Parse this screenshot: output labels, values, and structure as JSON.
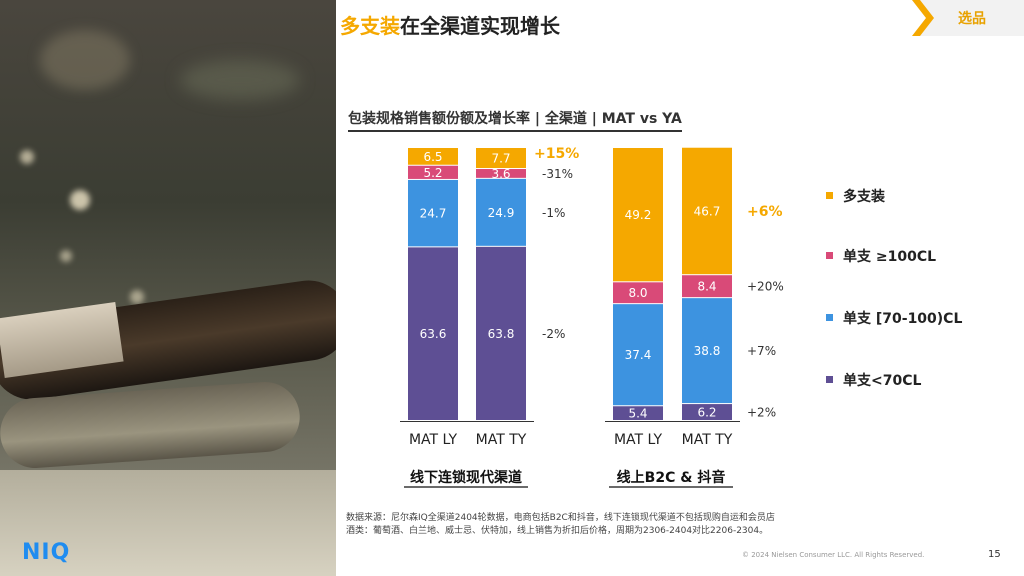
{
  "title": {
    "highlight": "多支装",
    "rest": "在全渠道实现增长"
  },
  "tag": "选品",
  "brand": {
    "logo": "NIQ",
    "colors": {
      "orange": "#f5a800",
      "pink": "#d94a78",
      "blue": "#3d93e0",
      "purple": "#5e4f94",
      "accent": "#1f8cf0"
    }
  },
  "chart_data": {
    "type": "bar",
    "stacked": true,
    "normalized_to_100": true,
    "title": "包装规格销售额份额及增长率 | 全渠道 | MAT vs YA",
    "legend_position": "right",
    "series": [
      {
        "name": "多支装",
        "color": "#f5a800"
      },
      {
        "name": "单支 ≥100CL",
        "color": "#d94a78"
      },
      {
        "name": "单支 [70-100)CL",
        "color": "#3d93e0"
      },
      {
        "name": "单支<70CL",
        "color": "#5e4f94"
      }
    ],
    "groups": [
      {
        "name": "线下连锁现代渠道",
        "categories": [
          "MAT LY",
          "MAT TY"
        ],
        "values": {
          "多支装": [
            6.5,
            7.7
          ],
          "单支 ≥100CL": [
            5.2,
            3.6
          ],
          "单支 [70-100)CL": [
            24.7,
            24.9
          ],
          "单支<70CL": [
            63.6,
            63.8
          ]
        },
        "growth": {
          "多支装": "+15%",
          "单支 ≥100CL": "-31%",
          "单支 [70-100)CL": "-1%",
          "单支<70CL": "-2%"
        }
      },
      {
        "name": "线上B2C & 抖音",
        "categories": [
          "MAT LY",
          "MAT TY"
        ],
        "values": {
          "多支装": [
            49.2,
            46.7
          ],
          "单支 ≥100CL": [
            8.0,
            8.4
          ],
          "单支 [70-100)CL": [
            37.4,
            38.8
          ],
          "单支<70CL": [
            5.4,
            6.2
          ]
        },
        "growth": {
          "多支装": "+6%",
          "单支 ≥100CL": "+20%",
          "单支 [70-100)CL": "+7%",
          "单支<70CL": "+2%"
        }
      }
    ]
  },
  "footnote": {
    "line1": "数据来源：尼尔森IQ全渠道2404轮数据，电商包括B2C和抖音，线下连锁现代渠道不包括现购自运和会员店",
    "line2": "酒类：葡萄酒、白兰地、威士忌、伏特加，线上销售为折扣后价格，周期为2306-2404对比2206-2304。"
  },
  "copyright": "© 2024 Nielsen Consumer LLC. All Rights Reserved.",
  "page_number": "15"
}
